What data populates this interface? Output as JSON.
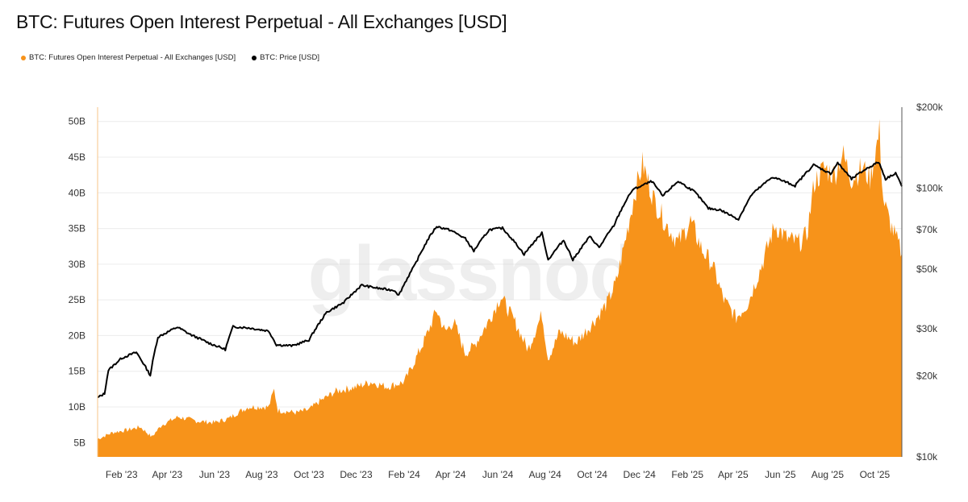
{
  "title": "BTC: Futures Open Interest Perpetual - All Exchanges [USD]",
  "watermark": "glassnode",
  "legend": [
    {
      "label": "BTC: Futures Open Interest Perpetual - All Exchanges [USD]",
      "color": "#f7931a"
    },
    {
      "label": "BTC: Price [USD]",
      "color": "#000000"
    }
  ],
  "chart_data": {
    "type": "area",
    "title": "BTC: Futures Open Interest Perpetual - All Exchanges [USD]",
    "x_ticks": [
      "Feb '23",
      "Apr '23",
      "Jun '23",
      "Aug '23",
      "Oct '23",
      "Dec '23",
      "Feb '24",
      "Apr '24",
      "Jun '24",
      "Aug '24",
      "Oct '24",
      "Dec '24",
      "Feb '25",
      "Apr '25",
      "Jun '25",
      "Aug '25",
      "Oct '25"
    ],
    "x_range": [
      "2023-01-01",
      "2025-11-05"
    ],
    "left_axis": {
      "scale": "linear",
      "ylim": [
        3,
        52
      ],
      "ticks": [
        "5B",
        "10B",
        "15B",
        "20B",
        "25B",
        "30B",
        "35B",
        "40B",
        "45B",
        "50B"
      ],
      "tick_values": [
        5,
        10,
        15,
        20,
        25,
        30,
        35,
        40,
        45,
        50
      ],
      "unit": "billion USD"
    },
    "right_axis": {
      "scale": "log",
      "ylim": [
        10000,
        200000
      ],
      "ticks": [
        "$10k",
        "$20k",
        "$30k",
        "$50k",
        "$70k",
        "$100k",
        "$200k"
      ],
      "tick_values": [
        10000,
        20000,
        30000,
        50000,
        70000,
        100000,
        200000
      ]
    },
    "grid": "horizontal",
    "legend_position": "top-left",
    "series": [
      {
        "name": "BTC: Futures Open Interest Perpetual - All Exchanges [USD]",
        "axis": "left",
        "style": "area",
        "color": "#f7931a",
        "unit": "billion USD",
        "points": [
          [
            "2023-01-01",
            5.5
          ],
          [
            "2023-01-20",
            6.4
          ],
          [
            "2023-02-10",
            6.8
          ],
          [
            "2023-02-25",
            7.2
          ],
          [
            "2023-03-12",
            5.8
          ],
          [
            "2023-03-25",
            7.5
          ],
          [
            "2023-04-15",
            8.6
          ],
          [
            "2023-05-10",
            8.0
          ],
          [
            "2023-06-01",
            7.8
          ],
          [
            "2023-06-20",
            8.4
          ],
          [
            "2023-07-01",
            9.2
          ],
          [
            "2023-07-15",
            10.0
          ],
          [
            "2023-08-10",
            10.0
          ],
          [
            "2023-08-17",
            12.4
          ],
          [
            "2023-08-22",
            9.5
          ],
          [
            "2023-09-15",
            9.2
          ],
          [
            "2023-10-01",
            9.6
          ],
          [
            "2023-10-15",
            10.8
          ],
          [
            "2023-11-05",
            12.2
          ],
          [
            "2023-12-01",
            12.8
          ],
          [
            "2023-12-20",
            13.5
          ],
          [
            "2024-01-10",
            12.8
          ],
          [
            "2024-02-01",
            13.5
          ],
          [
            "2024-02-15",
            16.5
          ],
          [
            "2024-03-01",
            20.0
          ],
          [
            "2024-03-14",
            23.6
          ],
          [
            "2024-03-25",
            20.5
          ],
          [
            "2024-04-05",
            22.0
          ],
          [
            "2024-04-20",
            17.5
          ],
          [
            "2024-05-01",
            18.5
          ],
          [
            "2024-05-20",
            22.0
          ],
          [
            "2024-06-05",
            25.5
          ],
          [
            "2024-06-25",
            21.5
          ],
          [
            "2024-07-10",
            18.0
          ],
          [
            "2024-07-28",
            23.0
          ],
          [
            "2024-08-05",
            16.8
          ],
          [
            "2024-08-20",
            20.5
          ],
          [
            "2024-09-10",
            19.0
          ],
          [
            "2024-09-30",
            21.5
          ],
          [
            "2024-10-20",
            24.5
          ],
          [
            "2024-11-01",
            27.5
          ],
          [
            "2024-11-12",
            33.0
          ],
          [
            "2024-11-25",
            40.0
          ],
          [
            "2024-12-05",
            44.0
          ],
          [
            "2024-12-20",
            39.0
          ],
          [
            "2025-01-05",
            35.5
          ],
          [
            "2025-01-20",
            33.0
          ],
          [
            "2025-02-05",
            36.0
          ],
          [
            "2025-02-20",
            32.0
          ],
          [
            "2025-03-05",
            30.0
          ],
          [
            "2025-03-20",
            25.0
          ],
          [
            "2025-04-05",
            22.5
          ],
          [
            "2025-04-20",
            24.5
          ],
          [
            "2025-05-10",
            30.5
          ],
          [
            "2025-05-25",
            35.5
          ],
          [
            "2025-06-10",
            33.5
          ],
          [
            "2025-06-25",
            33.0
          ],
          [
            "2025-07-05",
            34.0
          ],
          [
            "2025-07-15",
            41.5
          ],
          [
            "2025-07-28",
            43.5
          ],
          [
            "2025-08-10",
            42.5
          ],
          [
            "2025-08-20",
            45.5
          ],
          [
            "2025-09-01",
            42.0
          ],
          [
            "2025-09-15",
            43.5
          ],
          [
            "2025-09-25",
            42.0
          ],
          [
            "2025-10-07",
            48.5
          ],
          [
            "2025-10-12",
            39.0
          ],
          [
            "2025-10-20",
            36.0
          ],
          [
            "2025-11-05",
            31.5
          ]
        ]
      },
      {
        "name": "BTC: Price [USD]",
        "axis": "right",
        "style": "line",
        "color": "#000000",
        "unit": "USD",
        "points": [
          [
            "2023-01-01",
            16600
          ],
          [
            "2023-01-10",
            17200
          ],
          [
            "2023-01-15",
            21000
          ],
          [
            "2023-02-01",
            23300
          ],
          [
            "2023-02-20",
            24500
          ],
          [
            "2023-03-10",
            20100
          ],
          [
            "2023-03-20",
            27900
          ],
          [
            "2023-04-14",
            30400
          ],
          [
            "2023-05-01",
            28500
          ],
          [
            "2023-05-25",
            26500
          ],
          [
            "2023-06-15",
            25100
          ],
          [
            "2023-06-25",
            30500
          ],
          [
            "2023-07-15",
            30200
          ],
          [
            "2023-08-10",
            29400
          ],
          [
            "2023-08-20",
            26100
          ],
          [
            "2023-09-10",
            25900
          ],
          [
            "2023-10-01",
            27200
          ],
          [
            "2023-10-24",
            34500
          ],
          [
            "2023-11-15",
            37500
          ],
          [
            "2023-12-08",
            43500
          ],
          [
            "2023-12-31",
            42300
          ],
          [
            "2024-01-20",
            41600
          ],
          [
            "2024-01-25",
            39900
          ],
          [
            "2024-02-15",
            51800
          ],
          [
            "2024-03-05",
            66000
          ],
          [
            "2024-03-14",
            72000
          ],
          [
            "2024-04-01",
            69700
          ],
          [
            "2024-04-20",
            64900
          ],
          [
            "2024-05-01",
            58300
          ],
          [
            "2024-05-21",
            70000
          ],
          [
            "2024-06-07",
            71000
          ],
          [
            "2024-07-05",
            56700
          ],
          [
            "2024-07-28",
            68000
          ],
          [
            "2024-08-05",
            54000
          ],
          [
            "2024-08-25",
            64000
          ],
          [
            "2024-09-06",
            54000
          ],
          [
            "2024-09-28",
            66000
          ],
          [
            "2024-10-10",
            60000
          ],
          [
            "2024-10-29",
            72500
          ],
          [
            "2024-11-12",
            88000
          ],
          [
            "2024-11-22",
            98500
          ],
          [
            "2024-12-17",
            106000
          ],
          [
            "2024-12-31",
            93400
          ],
          [
            "2025-01-20",
            106000
          ],
          [
            "2025-02-10",
            97000
          ],
          [
            "2025-02-28",
            84000
          ],
          [
            "2025-03-15",
            83000
          ],
          [
            "2025-04-08",
            76500
          ],
          [
            "2025-04-25",
            94500
          ],
          [
            "2025-05-22",
            110000
          ],
          [
            "2025-06-20",
            102000
          ],
          [
            "2025-07-14",
            122000
          ],
          [
            "2025-08-05",
            113000
          ],
          [
            "2025-08-14",
            124000
          ],
          [
            "2025-09-01",
            108000
          ],
          [
            "2025-09-18",
            117000
          ],
          [
            "2025-10-06",
            125000
          ],
          [
            "2025-10-15",
            108000
          ],
          [
            "2025-10-28",
            114000
          ],
          [
            "2025-11-05",
            101500
          ]
        ]
      }
    ]
  }
}
